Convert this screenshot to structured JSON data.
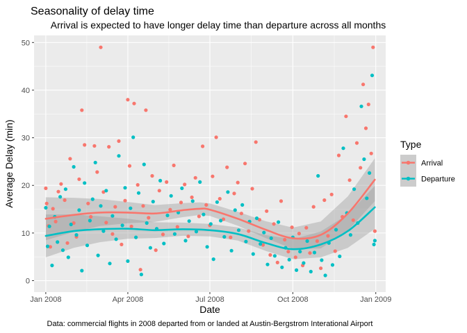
{
  "chart_data": {
    "type": "scatter",
    "title": "Seasonality of delay time",
    "subtitle": "Arrival is expected to have longer delay time than departure across all months",
    "xlabel": "Date",
    "ylabel": "Average Delay (min)",
    "caption": "Data: commercial flights in 2008 departed from or landed at Austin-Bergstrom Interational Airport",
    "x_ticks": [
      "Jan 2008",
      "Apr 2008",
      "Jul 2008",
      "Oct 2008",
      "Jan 2009"
    ],
    "y_ticks": [
      0,
      10,
      20,
      30,
      40,
      50
    ],
    "xlim": [
      "2007-12-19",
      "2009-01-12"
    ],
    "ylim": [
      -2.4,
      51.5
    ],
    "grid": true,
    "legend": {
      "title": "Type",
      "position": "right",
      "entries": [
        "Arrival",
        "Departure"
      ]
    },
    "colors": {
      "Arrival": "#F8766D",
      "Departure": "#00BFC4"
    },
    "series": [
      {
        "name": "Arrival",
        "smooth": [
          [
            "2008-01-01",
            13.0
          ],
          [
            "2008-02-01",
            13.8
          ],
          [
            "2008-03-01",
            14.3
          ],
          [
            "2008-04-01",
            14.3
          ],
          [
            "2008-05-01",
            14.1
          ],
          [
            "2008-06-01",
            14.8
          ],
          [
            "2008-06-20",
            15.1
          ],
          [
            "2008-07-01",
            14.9
          ],
          [
            "2008-08-01",
            13.0
          ],
          [
            "2008-09-01",
            10.7
          ],
          [
            "2008-10-01",
            8.9
          ],
          [
            "2008-11-01",
            9.6
          ],
          [
            "2008-12-01",
            14.1
          ],
          [
            "2008-12-31",
            21.2
          ]
        ],
        "points": [
          [
            "2008-01-01",
            19.4
          ],
          [
            "2008-01-02",
            16.2
          ],
          [
            "2008-01-04",
            11.5
          ],
          [
            "2008-01-06",
            7.1
          ],
          [
            "2008-01-09",
            15.1
          ],
          [
            "2008-01-12",
            12.4
          ],
          [
            "2008-01-15",
            18.7
          ],
          [
            "2008-01-18",
            20.3
          ],
          [
            "2008-01-22",
            16.9
          ],
          [
            "2008-01-25",
            7.9
          ],
          [
            "2008-01-28",
            25.6
          ],
          [
            "2008-02-01",
            12.1
          ],
          [
            "2008-02-04",
            9.2
          ],
          [
            "2008-02-07",
            21.3
          ],
          [
            "2008-02-10",
            35.8
          ],
          [
            "2008-02-13",
            28.5
          ],
          [
            "2008-02-17",
            16.2
          ],
          [
            "2008-02-20",
            13.4
          ],
          [
            "2008-02-24",
            28.3
          ],
          [
            "2008-02-27",
            22.8
          ],
          [
            "2008-03-02",
            49.0
          ],
          [
            "2008-03-05",
            18.6
          ],
          [
            "2008-03-08",
            12.2
          ],
          [
            "2008-03-11",
            28.1
          ],
          [
            "2008-03-15",
            9.8
          ],
          [
            "2008-03-18",
            15.5
          ],
          [
            "2008-03-22",
            29.3
          ],
          [
            "2008-03-25",
            7.6
          ],
          [
            "2008-03-29",
            16.8
          ],
          [
            "2008-04-01",
            38.0
          ],
          [
            "2008-04-03",
            24.1
          ],
          [
            "2008-04-05",
            11.4
          ],
          [
            "2008-04-08",
            37.2
          ],
          [
            "2008-04-12",
            20.1
          ],
          [
            "2008-04-15",
            2.3
          ],
          [
            "2008-04-18",
            15.7
          ],
          [
            "2008-04-21",
            35.8
          ],
          [
            "2008-04-24",
            13.2
          ],
          [
            "2008-04-28",
            22.0
          ],
          [
            "2008-05-02",
            6.4
          ],
          [
            "2008-05-06",
            18.9
          ],
          [
            "2008-05-10",
            9.7
          ],
          [
            "2008-05-14",
            20.7
          ],
          [
            "2008-05-18",
            14.9
          ],
          [
            "2008-05-22",
            24.2
          ],
          [
            "2008-05-26",
            11.3
          ],
          [
            "2008-05-30",
            16.4
          ],
          [
            "2008-06-03",
            20.2
          ],
          [
            "2008-06-07",
            9.3
          ],
          [
            "2008-06-11",
            17.5
          ],
          [
            "2008-06-15",
            21.6
          ],
          [
            "2008-06-19",
            13.5
          ],
          [
            "2008-06-23",
            28.2
          ],
          [
            "2008-06-27",
            15.9
          ],
          [
            "2008-07-01",
            11.6
          ],
          [
            "2008-07-04",
            21.9
          ],
          [
            "2008-07-08",
            30.1
          ],
          [
            "2008-07-12",
            17.2
          ],
          [
            "2008-07-16",
            12.9
          ],
          [
            "2008-07-20",
            23.8
          ],
          [
            "2008-07-24",
            9.1
          ],
          [
            "2008-07-28",
            18.3
          ],
          [
            "2008-08-01",
            20.6
          ],
          [
            "2008-08-05",
            14.1
          ],
          [
            "2008-08-09",
            24.6
          ],
          [
            "2008-08-13",
            10.4
          ],
          [
            "2008-08-17",
            19.3
          ],
          [
            "2008-08-21",
            29.1
          ],
          [
            "2008-08-25",
            12.8
          ],
          [
            "2008-08-29",
            7.5
          ],
          [
            "2008-09-02",
            14.6
          ],
          [
            "2008-09-06",
            5.4
          ],
          [
            "2008-09-10",
            11.9
          ],
          [
            "2008-09-14",
            3.8
          ],
          [
            "2008-09-18",
            16.7
          ],
          [
            "2008-09-22",
            8.6
          ],
          [
            "2008-09-26",
            6.1
          ],
          [
            "2008-09-30",
            11.2
          ],
          [
            "2008-10-04",
            4.9
          ],
          [
            "2008-10-08",
            9.9
          ],
          [
            "2008-10-12",
            3.2
          ],
          [
            "2008-10-16",
            11.1
          ],
          [
            "2008-10-20",
            5.8
          ],
          [
            "2008-10-24",
            15.5
          ],
          [
            "2008-10-28",
            8.3
          ],
          [
            "2008-11-01",
            2.6
          ],
          [
            "2008-11-05",
            16.9
          ],
          [
            "2008-11-09",
            9.4
          ],
          [
            "2008-11-13",
            18.1
          ],
          [
            "2008-11-17",
            6.2
          ],
          [
            "2008-11-21",
            26.3
          ],
          [
            "2008-11-25",
            13.4
          ],
          [
            "2008-11-29",
            34.5
          ],
          [
            "2008-12-03",
            21.1
          ],
          [
            "2008-12-07",
            12.7
          ],
          [
            "2008-12-11",
            28.9
          ],
          [
            "2008-12-15",
            23.7
          ],
          [
            "2008-12-18",
            41.2
          ],
          [
            "2008-12-21",
            32.0
          ],
          [
            "2008-12-24",
            37.0
          ],
          [
            "2008-12-27",
            26.7
          ],
          [
            "2008-12-29",
            49.0
          ],
          [
            "2008-12-31",
            10.4
          ]
        ]
      },
      {
        "name": "Departure",
        "smooth": [
          [
            "2008-01-01",
            9.4
          ],
          [
            "2008-02-01",
            10.4
          ],
          [
            "2008-03-01",
            10.8
          ],
          [
            "2008-04-01",
            10.9
          ],
          [
            "2008-05-01",
            10.6
          ],
          [
            "2008-06-01",
            10.8
          ],
          [
            "2008-07-01",
            10.6
          ],
          [
            "2008-08-01",
            9.8
          ],
          [
            "2008-09-01",
            7.9
          ],
          [
            "2008-10-01",
            6.6
          ],
          [
            "2008-11-01",
            7.6
          ],
          [
            "2008-12-01",
            10.4
          ],
          [
            "2008-12-31",
            15.4
          ]
        ],
        "points": [
          [
            "2008-01-01",
            15.3
          ],
          [
            "2008-01-03",
            7.2
          ],
          [
            "2008-01-05",
            11.4
          ],
          [
            "2008-01-08",
            3.2
          ],
          [
            "2008-01-11",
            13.4
          ],
          [
            "2008-01-14",
            8.1
          ],
          [
            "2008-01-17",
            17.6
          ],
          [
            "2008-01-20",
            6.4
          ],
          [
            "2008-01-23",
            19.2
          ],
          [
            "2008-01-26",
            4.9
          ],
          [
            "2008-01-29",
            11.8
          ],
          [
            "2008-02-01",
            23.9
          ],
          [
            "2008-02-04",
            9.6
          ],
          [
            "2008-02-07",
            14.8
          ],
          [
            "2008-02-10",
            2.1
          ],
          [
            "2008-02-13",
            20.5
          ],
          [
            "2008-02-16",
            7.4
          ],
          [
            "2008-02-19",
            12.6
          ],
          [
            "2008-02-22",
            17.1
          ],
          [
            "2008-02-25",
            24.8
          ],
          [
            "2008-02-28",
            5.3
          ],
          [
            "2008-03-02",
            15.7
          ],
          [
            "2008-03-05",
            10.4
          ],
          [
            "2008-03-08",
            18.9
          ],
          [
            "2008-03-12",
            3.6
          ],
          [
            "2008-03-15",
            13.6
          ],
          [
            "2008-03-19",
            8.7
          ],
          [
            "2008-03-22",
            26.2
          ],
          [
            "2008-03-26",
            11.6
          ],
          [
            "2008-03-29",
            19.5
          ],
          [
            "2008-04-01",
            4.1
          ],
          [
            "2008-04-04",
            15.2
          ],
          [
            "2008-04-07",
            30.1
          ],
          [
            "2008-04-10",
            9.1
          ],
          [
            "2008-04-13",
            18.4
          ],
          [
            "2008-04-16",
            1.3
          ],
          [
            "2008-04-19",
            24.4
          ],
          [
            "2008-04-22",
            12.1
          ],
          [
            "2008-04-26",
            6.9
          ],
          [
            "2008-04-29",
            16.6
          ],
          [
            "2008-05-03",
            10.9
          ],
          [
            "2008-05-07",
            21.0
          ],
          [
            "2008-05-11",
            7.8
          ],
          [
            "2008-05-15",
            13.7
          ],
          [
            "2008-05-19",
            17.8
          ],
          [
            "2008-05-23",
            9.8
          ],
          [
            "2008-05-27",
            14.3
          ],
          [
            "2008-05-31",
            19.4
          ],
          [
            "2008-06-04",
            8.4
          ],
          [
            "2008-06-08",
            12.5
          ],
          [
            "2008-06-12",
            16.7
          ],
          [
            "2008-06-16",
            10.3
          ],
          [
            "2008-06-20",
            20.7
          ],
          [
            "2008-06-24",
            13.9
          ],
          [
            "2008-06-28",
            7.1
          ],
          [
            "2008-07-02",
            11.9
          ],
          [
            "2008-07-05",
            4.5
          ],
          [
            "2008-07-09",
            16.5
          ],
          [
            "2008-07-13",
            12.6
          ],
          [
            "2008-07-17",
            9.2
          ],
          [
            "2008-07-21",
            18.6
          ],
          [
            "2008-07-25",
            6.3
          ],
          [
            "2008-07-29",
            14.8
          ],
          [
            "2008-08-02",
            10.6
          ],
          [
            "2008-08-06",
            15.9
          ],
          [
            "2008-08-10",
            8.2
          ],
          [
            "2008-08-14",
            12.4
          ],
          [
            "2008-08-18",
            5.6
          ],
          [
            "2008-08-22",
            13.1
          ],
          [
            "2008-08-26",
            7.7
          ],
          [
            "2008-08-30",
            10.1
          ],
          [
            "2008-09-03",
            3.4
          ],
          [
            "2008-09-07",
            8.9
          ],
          [
            "2008-09-11",
            5.2
          ],
          [
            "2008-09-15",
            12.3
          ],
          [
            "2008-09-19",
            2.8
          ],
          [
            "2008-09-23",
            6.9
          ],
          [
            "2008-09-27",
            4.4
          ],
          [
            "2008-10-01",
            9.1
          ],
          [
            "2008-10-05",
            2.2
          ],
          [
            "2008-10-09",
            6.1
          ],
          [
            "2008-10-13",
            3.7
          ],
          [
            "2008-10-17",
            8.3
          ],
          [
            "2008-10-21",
            1.9
          ],
          [
            "2008-10-25",
            5.9
          ],
          [
            "2008-10-29",
            22.0
          ],
          [
            "2008-11-02",
            4.3
          ],
          [
            "2008-11-06",
            1.1
          ],
          [
            "2008-11-10",
            7.9
          ],
          [
            "2008-11-14",
            3.3
          ],
          [
            "2008-11-18",
            10.7
          ],
          [
            "2008-11-22",
            5.1
          ],
          [
            "2008-11-26",
            27.8
          ],
          [
            "2008-11-30",
            14.2
          ],
          [
            "2008-12-04",
            9.6
          ],
          [
            "2008-12-08",
            19.2
          ],
          [
            "2008-12-12",
            12.1
          ],
          [
            "2008-12-16",
            36.6
          ],
          [
            "2008-12-19",
            25.5
          ],
          [
            "2008-12-22",
            17.3
          ],
          [
            "2008-12-25",
            22.6
          ],
          [
            "2008-12-28",
            43.1
          ],
          [
            "2008-12-30",
            7.6
          ],
          [
            "2008-12-31",
            8.4
          ]
        ]
      }
    ]
  }
}
